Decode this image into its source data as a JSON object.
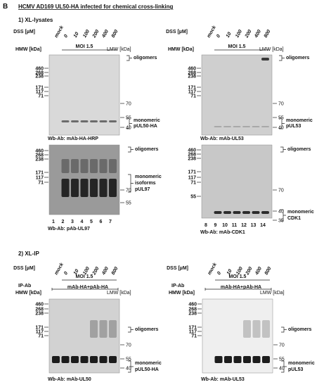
{
  "figure_label": "B",
  "title": "HCMV AD169 UL50-HA infected for chemical cross-linking",
  "sections": [
    "1) XL-lysates",
    "2) XL-IP"
  ],
  "panels": [
    {
      "dss_label": "DSS [µM]",
      "lanes": [
        "mock",
        "0",
        "10",
        "100",
        "200",
        "400",
        "800"
      ],
      "moi": "MOI 1.5",
      "hmw_label": "HMW [kDa]",
      "lmw_label": "LMW [kDa]",
      "hmw_markers": [
        460,
        268,
        238,
        171,
        117,
        71
      ],
      "lmw_markers": [
        70,
        55,
        40
      ],
      "annotations": [
        [
          "oligomers"
        ],
        [
          "monomeric",
          "pUL50-HA"
        ]
      ],
      "antibody": "Wb-Ab: mAb-HA-HRP"
    },
    {
      "dss_label": "DSS [µM]",
      "lanes": [
        "mock",
        "0",
        "10",
        "100",
        "200",
        "400",
        "800"
      ],
      "moi": "MOI 1.5",
      "hmw_label": "HMW [kDa]",
      "lmw_label": "LMW [kDa]",
      "hmw_markers": [
        460,
        268,
        238,
        171,
        117,
        71
      ],
      "lmw_markers": [
        70,
        55,
        40
      ],
      "annotations": [
        [
          "oligomers"
        ],
        [
          "monomeric",
          "pUL53"
        ]
      ],
      "antibody": "Wb-Ab: mAb-UL53"
    },
    {
      "hmw_markers": [
        460,
        268,
        238,
        171,
        117,
        71
      ],
      "lmw_markers": [
        70,
        55
      ],
      "annotations": [
        [
          "oligomers"
        ],
        [
          "monomeric",
          "isoforms",
          "pUL97"
        ]
      ],
      "lane_numbers": [
        1,
        2,
        3,
        4,
        5,
        6,
        7
      ],
      "antibody": "Wb-Ab: pAb-UL97"
    },
    {
      "hmw_markers": [
        460,
        268,
        238,
        171,
        117,
        71,
        55
      ],
      "lmw_markers": [
        70,
        40,
        35
      ],
      "annotations": [
        [
          "oligomers"
        ],
        [
          "monomeric",
          "CDK1"
        ]
      ],
      "lane_numbers": [
        8,
        9,
        10,
        11,
        12,
        13,
        14
      ],
      "antibody": "Wb-Ab: mAb-CDK1"
    },
    {
      "dss_label": "DSS [µM]",
      "lanes": [
        "mock",
        "0",
        "10",
        "100",
        "200",
        "400",
        "800"
      ],
      "moi": "MOI 1.5",
      "ip_label": "IP-Ab",
      "ip_antibody": "mAb-HA+pAb-HA",
      "hmw_label": "HMW [kDa]",
      "lmw_label": "LMW [kDa]",
      "hmw_markers": [
        460,
        268,
        238,
        171,
        117,
        71
      ],
      "lmw_markers": [
        70,
        55,
        40
      ],
      "annotations": [
        [
          "oligomers"
        ],
        [
          "monomeric",
          "pUL50-HA"
        ]
      ],
      "antibody": "Wb-Ab: mAb-UL50"
    },
    {
      "dss_label": "DSS [µM]",
      "lanes": [
        "mock",
        "0",
        "10",
        "100",
        "200",
        "400",
        "800"
      ],
      "moi": "MOI 1.5",
      "ip_label": "IP-Ab",
      "ip_antibody": "mAb-HA+pAb-HA",
      "hmw_label": "HMW [kDa]",
      "lmw_label": "LMW [kDa]",
      "hmw_markers": [
        460,
        268,
        238,
        171,
        117,
        71
      ],
      "lmw_markers": [
        70,
        55,
        40
      ],
      "annotations": [
        [
          "oligomers"
        ],
        [
          "monomeric",
          "pUL53"
        ]
      ],
      "antibody": "Wb-Ab: mAb-UL53"
    }
  ]
}
